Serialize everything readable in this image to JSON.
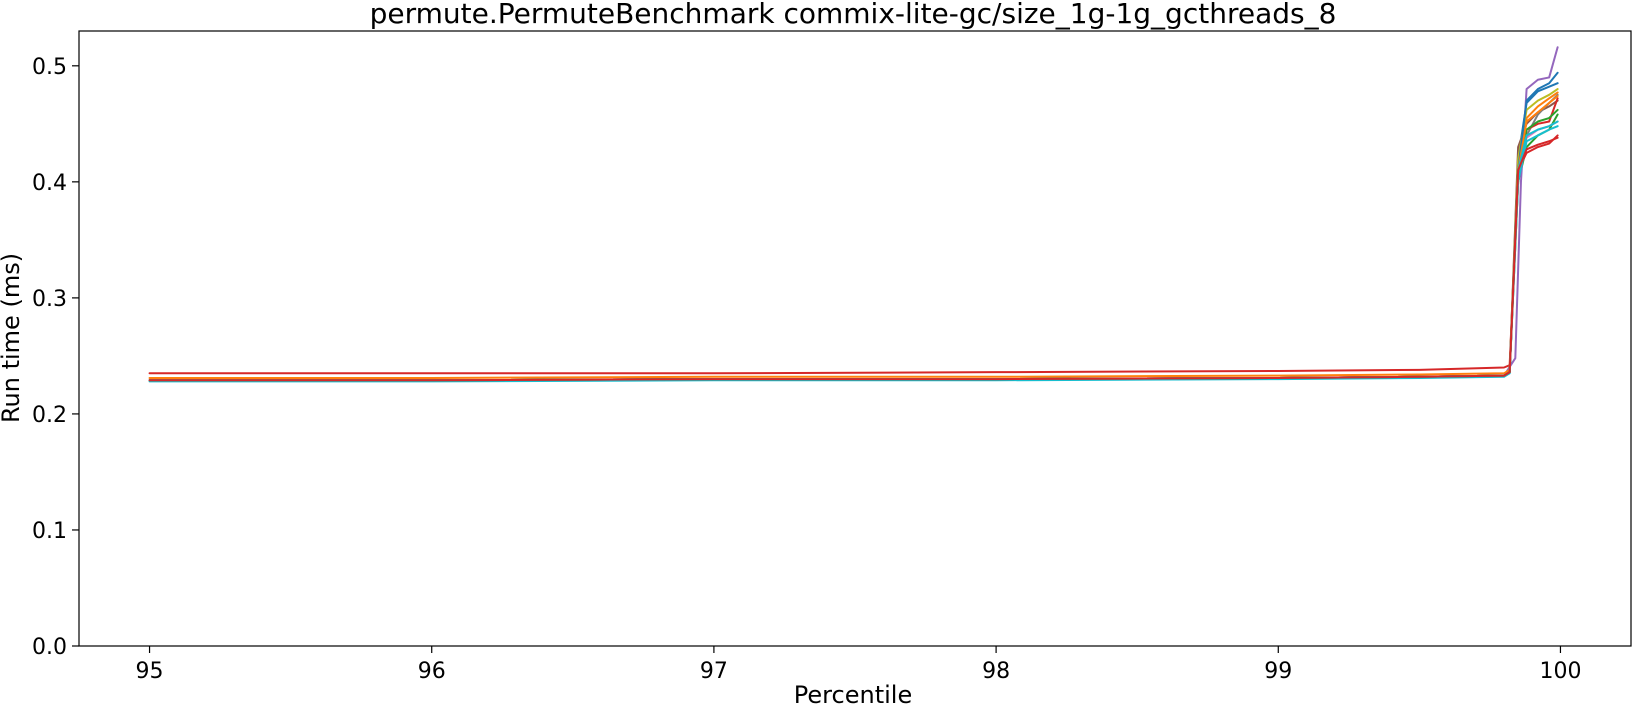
{
  "chart_data": {
    "type": "line",
    "title": "permute.PermuteBenchmark commix-lite-gc/size_1g-1g_gcthreads_8",
    "xlabel": "Percentile",
    "ylabel": "Run time (ms)",
    "xlim": [
      94.75,
      100.25
    ],
    "ylim": [
      0.0,
      0.53
    ],
    "xticks": [
      95,
      96,
      97,
      98,
      99,
      100
    ],
    "yticks": [
      0.0,
      0.1,
      0.2,
      0.3,
      0.4,
      0.5
    ],
    "xtick_labels": [
      "95",
      "96",
      "97",
      "98",
      "99",
      "100"
    ],
    "ytick_labels": [
      "0.0",
      "0.1",
      "0.2",
      "0.3",
      "0.4",
      "0.5"
    ],
    "grid": false,
    "legend": "none",
    "series": [
      {
        "color": "#1f77b4",
        "x": [
          95,
          96,
          97,
          98,
          99,
          99.5,
          99.8,
          99.82,
          99.85,
          99.88,
          99.92,
          99.96,
          99.99
        ],
        "y": [
          0.229,
          0.229,
          0.23,
          0.23,
          0.231,
          0.232,
          0.233,
          0.236,
          0.42,
          0.468,
          0.478,
          0.482,
          0.485
        ]
      },
      {
        "color": "#ff7f0e",
        "x": [
          95,
          96,
          97,
          98,
          99,
          99.5,
          99.8,
          99.82,
          99.85,
          99.88,
          99.92,
          99.96,
          99.99
        ],
        "y": [
          0.229,
          0.229,
          0.23,
          0.23,
          0.231,
          0.232,
          0.233,
          0.236,
          0.41,
          0.455,
          0.465,
          0.472,
          0.477
        ]
      },
      {
        "color": "#2ca02c",
        "x": [
          95,
          96,
          97,
          98,
          99,
          99.5,
          99.8,
          99.82,
          99.85,
          99.88,
          99.92,
          99.96,
          99.99
        ],
        "y": [
          0.229,
          0.229,
          0.23,
          0.23,
          0.231,
          0.232,
          0.233,
          0.236,
          0.4,
          0.43,
          0.44,
          0.445,
          0.458
        ]
      },
      {
        "color": "#d62728",
        "x": [
          95,
          96,
          97,
          98,
          99,
          99.5,
          99.8,
          99.82,
          99.85,
          99.88,
          99.92,
          99.96,
          99.99
        ],
        "y": [
          0.235,
          0.235,
          0.235,
          0.236,
          0.237,
          0.238,
          0.24,
          0.242,
          0.41,
          0.425,
          0.43,
          0.433,
          0.44
        ]
      },
      {
        "color": "#9467bd",
        "x": [
          95,
          96,
          97,
          98,
          99,
          99.5,
          99.8,
          99.84,
          99.86,
          99.88,
          99.92,
          99.96,
          99.99
        ],
        "y": [
          0.229,
          0.229,
          0.23,
          0.23,
          0.231,
          0.232,
          0.233,
          0.248,
          0.4,
          0.48,
          0.488,
          0.49,
          0.516
        ]
      },
      {
        "color": "#8c564b",
        "x": [
          95,
          96,
          97,
          98,
          99,
          99.5,
          99.8,
          99.82,
          99.85,
          99.88,
          99.92,
          99.96,
          99.99
        ],
        "y": [
          0.229,
          0.229,
          0.23,
          0.23,
          0.231,
          0.232,
          0.233,
          0.236,
          0.43,
          0.45,
          0.46,
          0.465,
          0.47
        ]
      },
      {
        "color": "#e377c2",
        "x": [
          95,
          96,
          97,
          98,
          99,
          99.5,
          99.8,
          99.82,
          99.85,
          99.88,
          99.92,
          99.96,
          99.99
        ],
        "y": [
          0.229,
          0.229,
          0.23,
          0.23,
          0.231,
          0.232,
          0.233,
          0.236,
          0.41,
          0.438,
          0.445,
          0.448,
          0.452
        ]
      },
      {
        "color": "#7f7f7f",
        "x": [
          95,
          96,
          97,
          98,
          99,
          99.5,
          99.8,
          99.82,
          99.85,
          99.88,
          99.92,
          99.96,
          99.99
        ],
        "y": [
          0.229,
          0.229,
          0.23,
          0.23,
          0.231,
          0.232,
          0.233,
          0.236,
          0.4,
          0.44,
          0.458,
          0.468,
          0.475
        ]
      },
      {
        "color": "#bcbd22",
        "x": [
          95,
          96,
          97,
          98,
          99,
          99.5,
          99.8,
          99.82,
          99.85,
          99.88,
          99.92,
          99.96,
          99.99
        ],
        "y": [
          0.229,
          0.229,
          0.23,
          0.23,
          0.231,
          0.232,
          0.233,
          0.236,
          0.42,
          0.462,
          0.47,
          0.475,
          0.48
        ]
      },
      {
        "color": "#17becf",
        "x": [
          95,
          96,
          97,
          98,
          99,
          99.5,
          99.8,
          99.82,
          99.85,
          99.88,
          99.92,
          99.96,
          99.99
        ],
        "y": [
          0.228,
          0.228,
          0.229,
          0.229,
          0.23,
          0.231,
          0.232,
          0.235,
          0.4,
          0.435,
          0.44,
          0.445,
          0.448
        ]
      },
      {
        "color": "#1f77b4",
        "x": [
          95,
          96,
          97,
          98,
          99,
          99.5,
          99.8,
          99.82,
          99.85,
          99.88,
          99.92,
          99.96,
          99.99
        ],
        "y": [
          0.229,
          0.229,
          0.23,
          0.23,
          0.231,
          0.232,
          0.233,
          0.236,
          0.41,
          0.47,
          0.48,
          0.485,
          0.494
        ]
      },
      {
        "color": "#d62728",
        "x": [
          95,
          96,
          97,
          98,
          99,
          99.5,
          99.8,
          99.82,
          99.85,
          99.88,
          99.92,
          99.96,
          99.99
        ],
        "y": [
          0.229,
          0.229,
          0.23,
          0.23,
          0.231,
          0.232,
          0.233,
          0.236,
          0.41,
          0.445,
          0.45,
          0.452,
          0.472
        ]
      },
      {
        "color": "#2ca02c",
        "x": [
          95,
          96,
          97,
          98,
          99,
          99.5,
          99.8,
          99.82,
          99.85,
          99.88,
          99.92,
          99.96,
          99.99
        ],
        "y": [
          0.229,
          0.229,
          0.23,
          0.23,
          0.231,
          0.232,
          0.233,
          0.236,
          0.41,
          0.445,
          0.452,
          0.455,
          0.462
        ]
      },
      {
        "color": "#ff7f0e",
        "x": [
          95,
          96,
          97,
          98,
          99,
          99.5,
          99.8,
          99.82,
          99.85,
          99.88,
          99.92,
          99.96,
          99.99
        ],
        "y": [
          0.231,
          0.231,
          0.232,
          0.232,
          0.233,
          0.234,
          0.235,
          0.238,
          0.41,
          0.452,
          0.46,
          0.468,
          0.474
        ]
      },
      {
        "color": "#17becf",
        "x": [
          95,
          96,
          97,
          98,
          99,
          99.5,
          99.8,
          99.82,
          99.85,
          99.88,
          99.92,
          99.96,
          99.99
        ],
        "y": [
          0.229,
          0.229,
          0.23,
          0.23,
          0.231,
          0.232,
          0.233,
          0.236,
          0.41,
          0.44,
          0.445,
          0.448,
          0.452
        ]
      },
      {
        "color": "#d62728",
        "x": [
          95,
          96,
          97,
          98,
          99,
          99.5,
          99.8,
          99.82,
          99.85,
          99.88,
          99.92,
          99.96,
          99.99
        ],
        "y": [
          0.229,
          0.229,
          0.23,
          0.23,
          0.231,
          0.232,
          0.233,
          0.236,
          0.41,
          0.428,
          0.432,
          0.435,
          0.438
        ]
      }
    ]
  }
}
